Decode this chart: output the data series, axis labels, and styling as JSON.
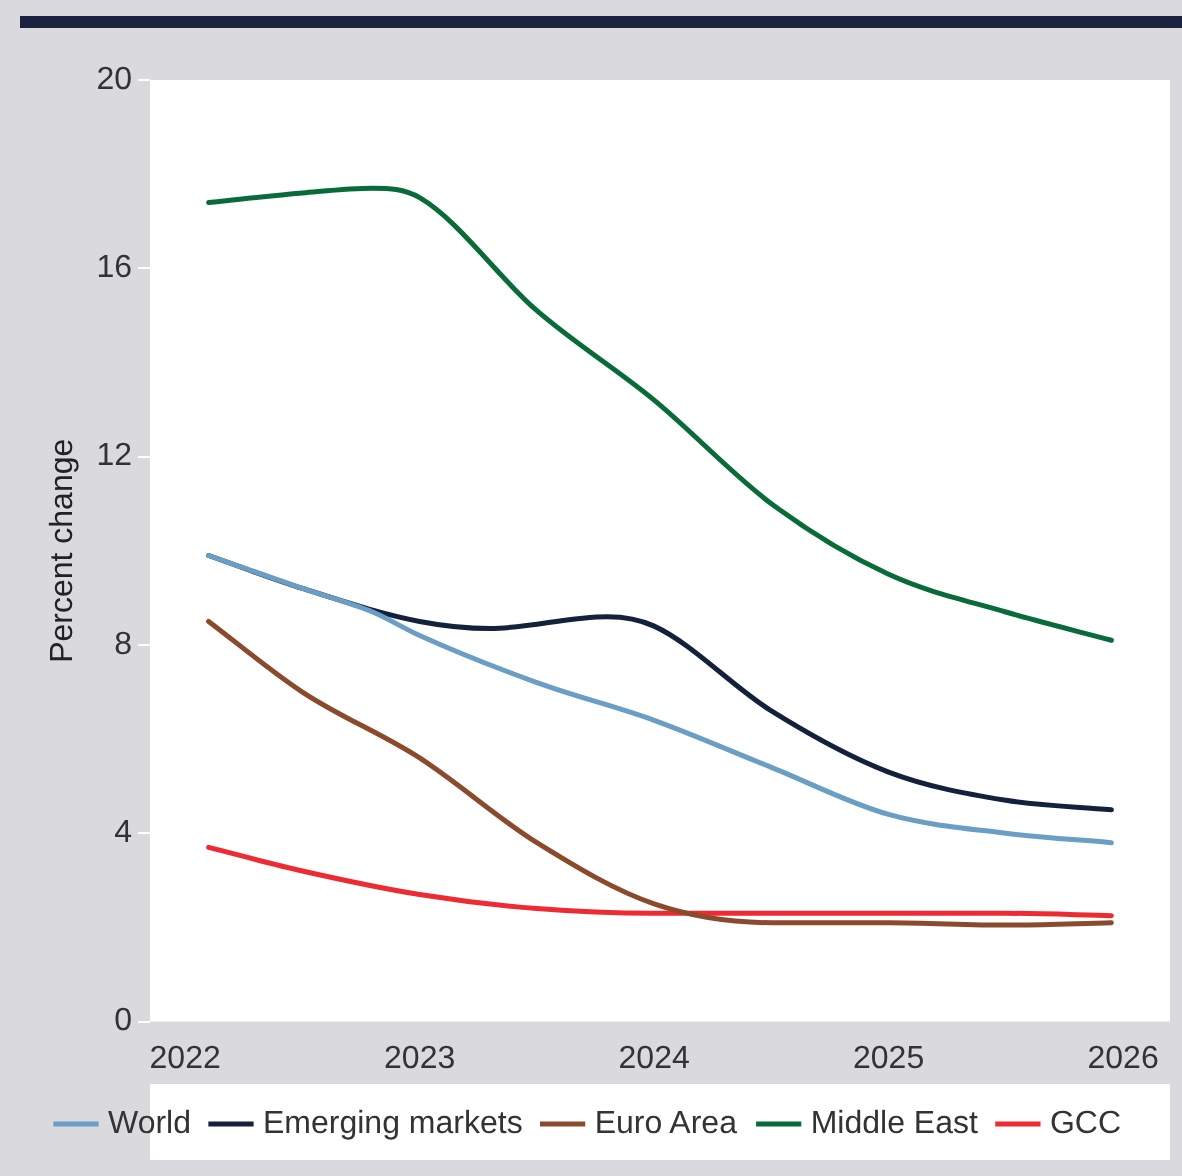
{
  "chart_data": {
    "type": "line",
    "ylabel": "Percent change",
    "xlim": [
      2021.85,
      2026.2
    ],
    "xticks": [
      2022,
      2023,
      2024,
      2025,
      2026
    ],
    "ylim": [
      0,
      20
    ],
    "yticks": [
      0,
      4,
      8,
      12,
      16,
      20
    ],
    "grid": false,
    "legend": "bottom",
    "marker": "none",
    "line_style": "solid",
    "series": [
      {
        "name": "World",
        "color": "#6a9ec5",
        "x": [
          2022.1,
          2022.5,
          2022.8,
          2023,
          2023.5,
          2024,
          2024.5,
          2025,
          2025.5,
          2025.95
        ],
        "values": [
          9.9,
          9.2,
          8.7,
          8.2,
          7.2,
          6.4,
          5.4,
          4.4,
          4.0,
          3.8
        ]
      },
      {
        "name": "Emerging markets",
        "color": "#14213d",
        "x": [
          2022.1,
          2022.5,
          2023,
          2023.3,
          2023.8,
          2024,
          2024.5,
          2025,
          2025.5,
          2025.95
        ],
        "values": [
          9.9,
          9.2,
          8.5,
          8.35,
          8.6,
          8.4,
          6.6,
          5.3,
          4.7,
          4.5
        ]
      },
      {
        "name": "Euro Area",
        "color": "#8b4a2b",
        "x": [
          2022.1,
          2022.5,
          2023,
          2023.5,
          2024,
          2024.5,
          2025,
          2025.5,
          2025.95
        ],
        "values": [
          8.5,
          7.0,
          5.6,
          3.8,
          2.5,
          2.1,
          2.1,
          2.05,
          2.1
        ]
      },
      {
        "name": "Middle East",
        "color": "#0a6b3a",
        "x": [
          2022.1,
          2022.5,
          2022.8,
          2023,
          2023.5,
          2024,
          2024.5,
          2025,
          2025.5,
          2025.95
        ],
        "values": [
          17.4,
          17.6,
          17.7,
          17.5,
          15.1,
          13.2,
          11.0,
          9.5,
          8.7,
          8.1
        ]
      },
      {
        "name": "GCC",
        "color": "#ee2a32",
        "x": [
          2022.1,
          2022.5,
          2023,
          2023.5,
          2024,
          2024.5,
          2025,
          2025.5,
          2025.95
        ],
        "values": [
          3.7,
          3.2,
          2.7,
          2.4,
          2.3,
          2.3,
          2.3,
          2.3,
          2.25
        ]
      }
    ]
  }
}
